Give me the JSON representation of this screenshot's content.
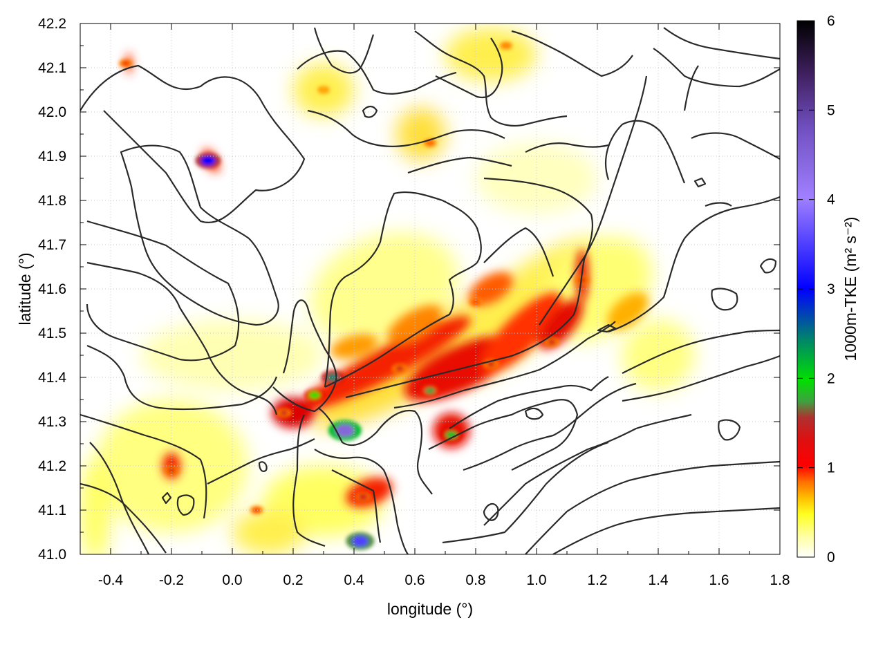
{
  "chart_data": {
    "type": "heatmap",
    "title": "",
    "xlabel": "longitude (°)",
    "ylabel": "latitude (°)",
    "xlim": [
      -0.5,
      1.8
    ],
    "ylim": [
      41.0,
      42.2
    ],
    "x_ticks": [
      "-0.4",
      "-0.2",
      "0.0",
      "0.2",
      "0.4",
      "0.6",
      "0.8",
      "1.0",
      "1.2",
      "1.4",
      "1.6",
      "1.8"
    ],
    "y_ticks": [
      "41.0",
      "41.1",
      "41.2",
      "41.3",
      "41.4",
      "41.5",
      "41.6",
      "41.7",
      "41.8",
      "41.9",
      "42.0",
      "42.1",
      "42.2"
    ],
    "grid": true,
    "overlay": "black terrain contour lines",
    "colorbar": {
      "label": "1000m-TKE (m² s⁻²)",
      "range": [
        0,
        6
      ],
      "ticks": [
        "0",
        "1",
        "2",
        "3",
        "4",
        "5",
        "6"
      ],
      "colormap": [
        "#ffffff",
        "#ffff40",
        "#ffb000",
        "#ff4000",
        "#dd0000",
        "#b02020",
        "#40b040",
        "#00e000",
        "#008060",
        "#0000ff",
        "#9070ff",
        "#a080e0",
        "#402060",
        "#000000"
      ]
    },
    "hotspots": [
      {
        "lon": 0.72,
        "lat": 41.27,
        "tke": 2.2
      },
      {
        "lon": 0.37,
        "lat": 41.28,
        "tke": 4.4
      },
      {
        "lon": 0.33,
        "lat": 41.4,
        "tke": 2.5
      },
      {
        "lon": 0.27,
        "lat": 41.36,
        "tke": 2.0
      },
      {
        "lon": -0.08,
        "lat": 41.89,
        "tke": 3.0
      },
      {
        "lon": 0.42,
        "lat": 41.03,
        "tke": 3.5
      },
      {
        "lon": 0.65,
        "lat": 41.37,
        "tke": 1.8
      },
      {
        "lon": 0.17,
        "lat": 41.32,
        "tke": 1.2
      },
      {
        "lon": 0.55,
        "lat": 41.42,
        "tke": 1.2
      },
      {
        "lon": 0.85,
        "lat": 41.43,
        "tke": 1.2
      },
      {
        "lon": 1.05,
        "lat": 41.48,
        "tke": 1.2
      },
      {
        "lon": 1.15,
        "lat": 41.62,
        "tke": 1.1
      },
      {
        "lon": -0.2,
        "lat": 41.19,
        "tke": 1.1
      },
      {
        "lon": 0.43,
        "lat": 41.13,
        "tke": 1.3
      },
      {
        "lon": 0.8,
        "lat": 41.57,
        "tke": 0.8
      },
      {
        "lon": -0.35,
        "lat": 42.11,
        "tke": 0.9
      },
      {
        "lon": 0.08,
        "lat": 41.1,
        "tke": 0.8
      },
      {
        "lon": 0.65,
        "lat": 41.93,
        "tke": 0.7
      },
      {
        "lon": 0.9,
        "lat": 42.15,
        "tke": 0.6
      },
      {
        "lon": 0.3,
        "lat": 42.05,
        "tke": 0.5
      }
    ]
  }
}
